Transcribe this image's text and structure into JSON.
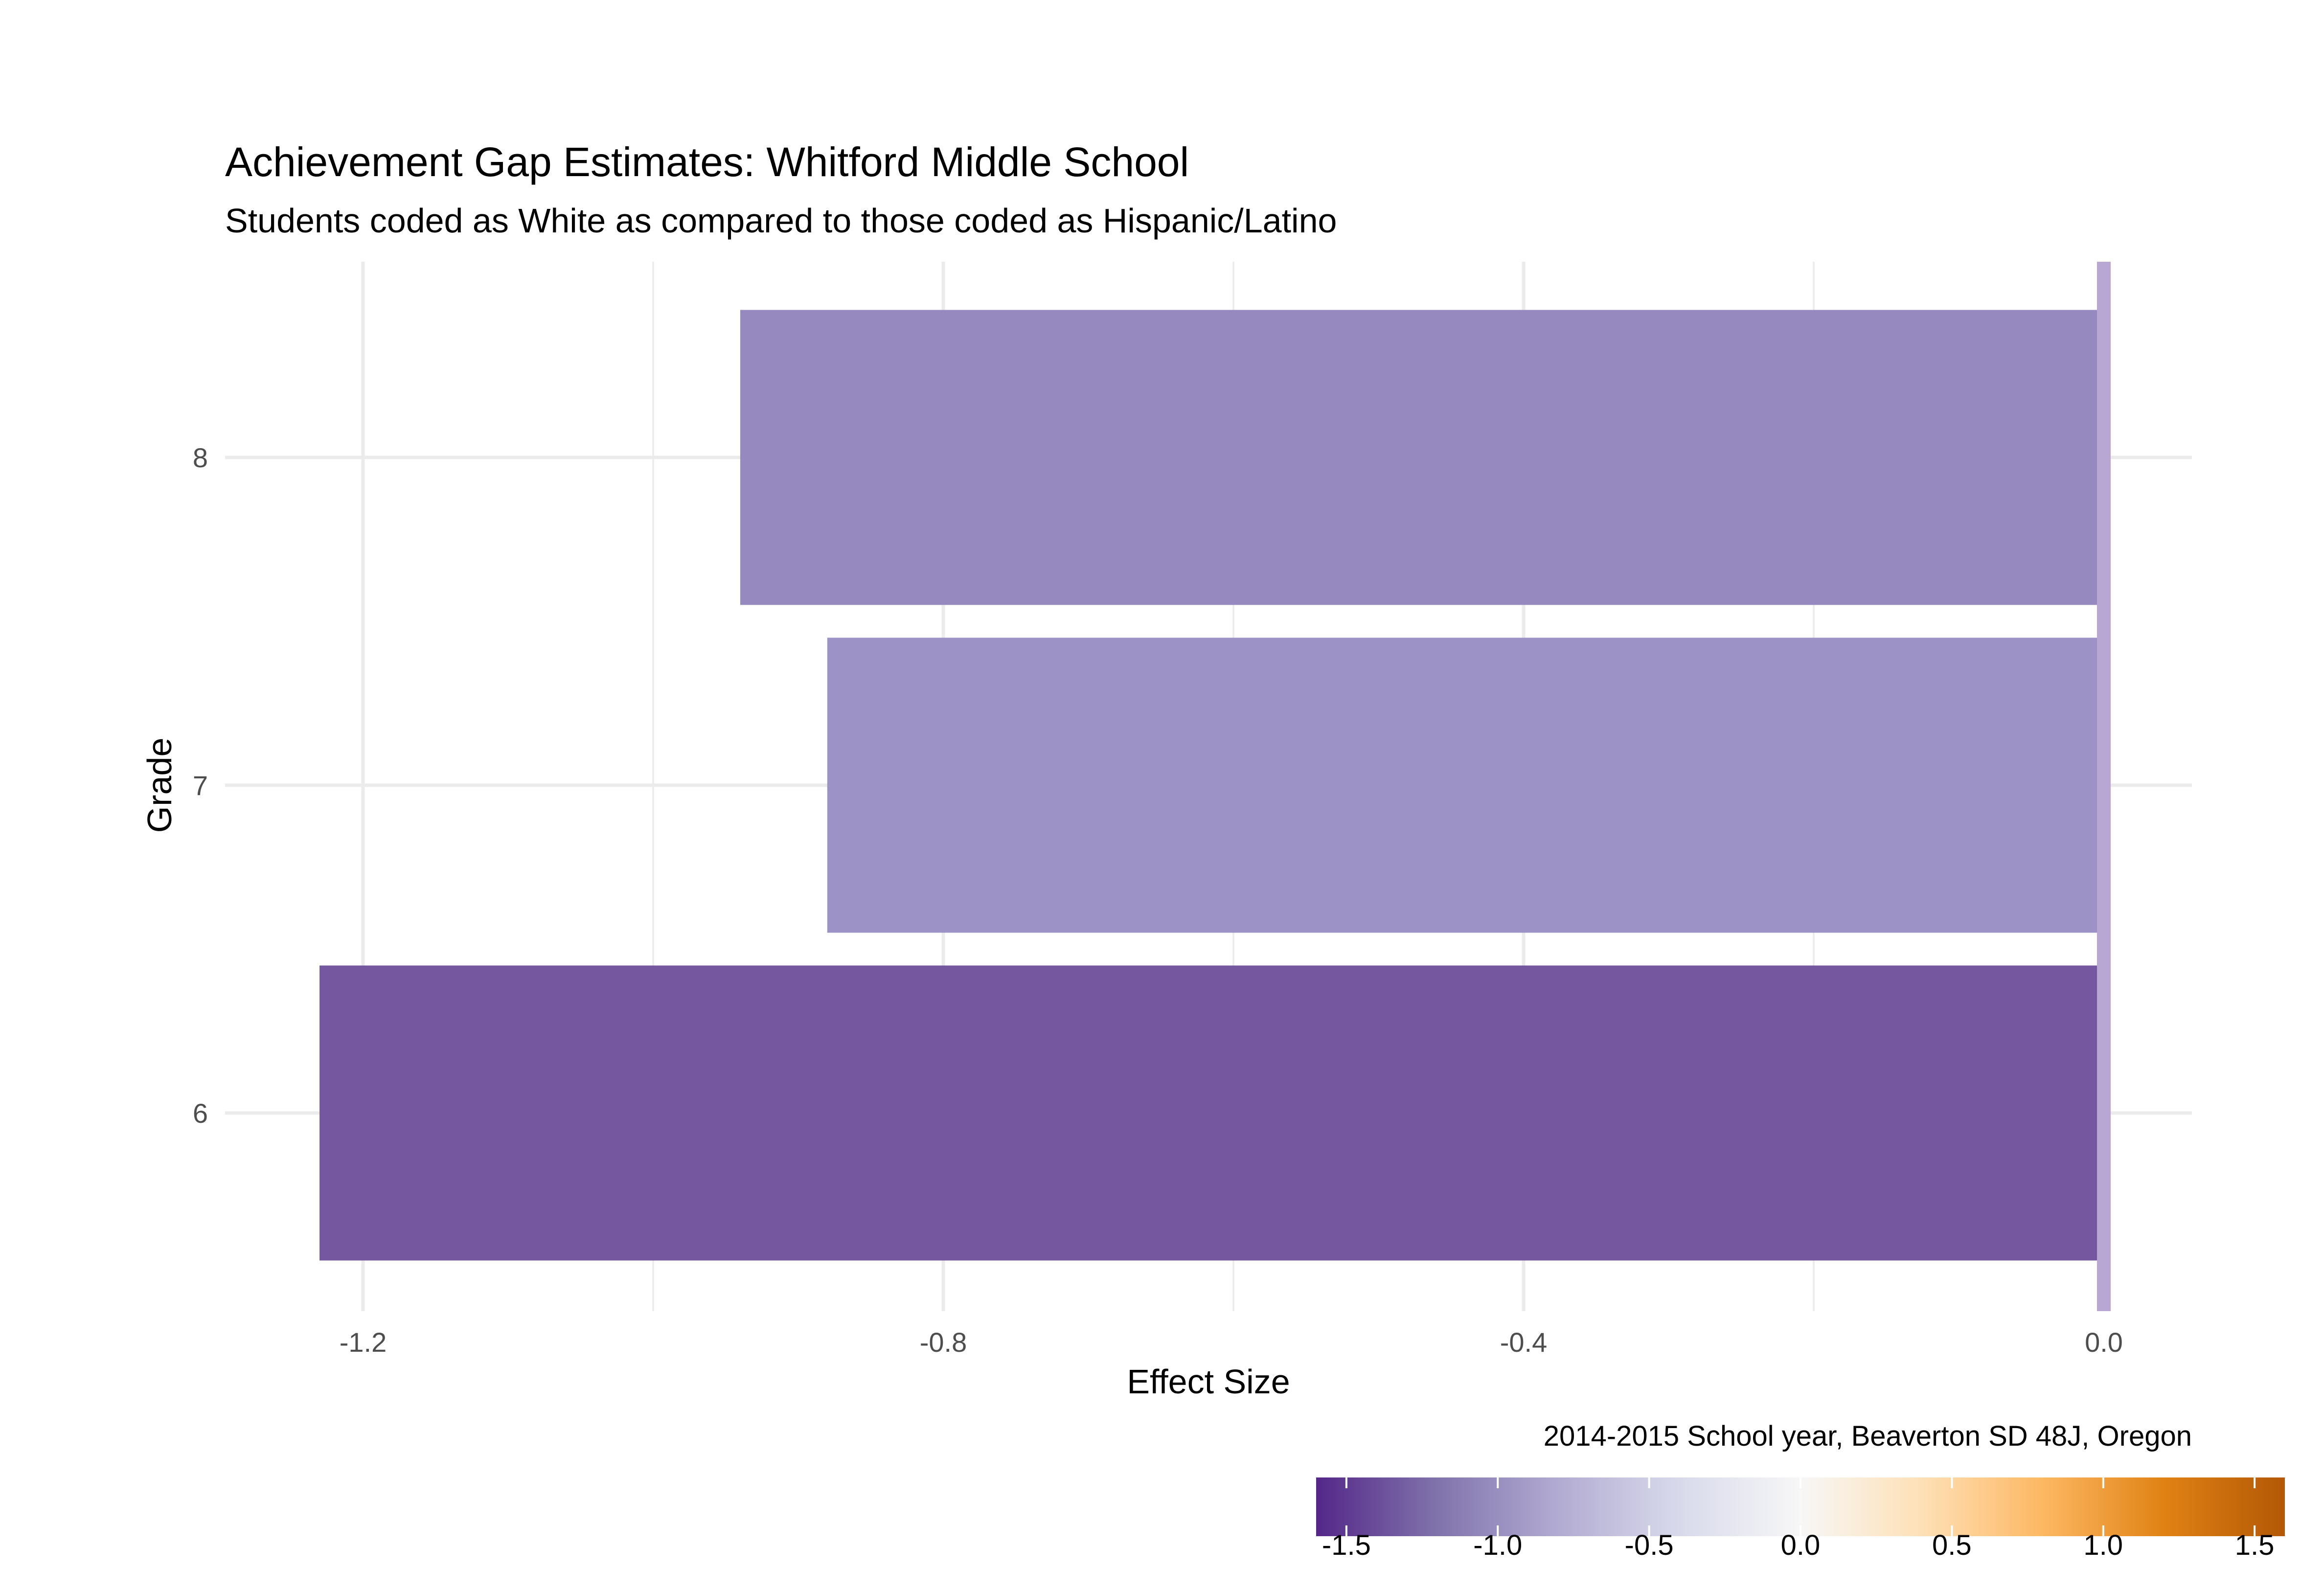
{
  "chart_data": {
    "type": "bar",
    "orientation": "horizontal",
    "title": "Achievement Gap Estimates: Whitford Middle School",
    "subtitle": "Students coded as White as compared to those coded as Hispanic/Latino",
    "xlabel": "Effect Size",
    "ylabel": "Grade",
    "caption": "2014-2015 School year, Beaverton SD 48J, Oregon",
    "categories": [
      "6",
      "7",
      "8"
    ],
    "values": [
      -1.23,
      -0.88,
      -0.94
    ],
    "bar_colors": [
      "#7557a0",
      "#9c92c5",
      "#9689c0"
    ],
    "xlim": [
      -1.3,
      0.06
    ],
    "x_ticks": [
      -1.2,
      -0.8,
      -0.4,
      0.0
    ],
    "x_tick_labels": [
      "-1.2",
      "-0.8",
      "-0.4",
      "0.0"
    ],
    "grid": true,
    "reference_line": {
      "x": 0.0,
      "color": "#b8a6d3"
    },
    "colorbar": {
      "range": [
        -1.6,
        1.6
      ],
      "ticks": [
        -1.5,
        -1.0,
        -0.5,
        0.0,
        0.5,
        1.0,
        1.5
      ],
      "tick_labels": [
        "-1.5",
        "-1.0",
        "-0.5",
        "0.0",
        "0.5",
        "1.0",
        "1.5"
      ],
      "colors": [
        "#542788",
        "#8073ac",
        "#b2abd2",
        "#d8daeb",
        "#f7f7f7",
        "#fee0b6",
        "#fdb863",
        "#e08214",
        "#b35806"
      ],
      "position": "bottom-right"
    }
  }
}
